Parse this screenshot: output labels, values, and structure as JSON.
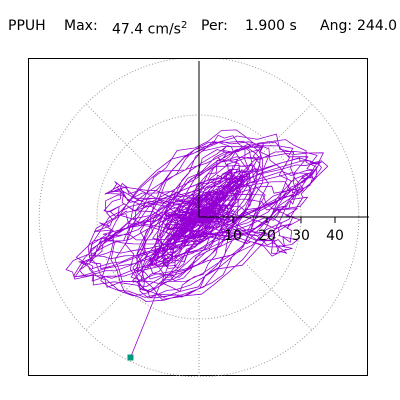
{
  "header": {
    "station": "PPUH",
    "max_label": "Max:",
    "max_value": "47.4 cm/s",
    "max_exp": "2",
    "per_label": "Per:",
    "per_value": "1.900 s",
    "ang_label": "Ang:",
    "ang_value": "244.0"
  },
  "chart_data": {
    "type": "polar-hodogram",
    "title": "PPUH",
    "max_amplitude": 47.4,
    "units": "cm/s²",
    "period_s": 1.9,
    "angle_deg": 244.0,
    "radial_ticks": [
      10,
      20,
      30,
      40
    ],
    "radial_tick_labels": [
      "10",
      "20",
      "30",
      "40"
    ],
    "radial_range": [
      0,
      47.4
    ],
    "circle_style": "dotted",
    "spoke_angles_deg": [
      0,
      45,
      90,
      135,
      180,
      225,
      270,
      315
    ],
    "grid": true,
    "trace_color": "#9400d3",
    "end_marker": {
      "shape": "square",
      "color": "#009a80"
    }
  }
}
